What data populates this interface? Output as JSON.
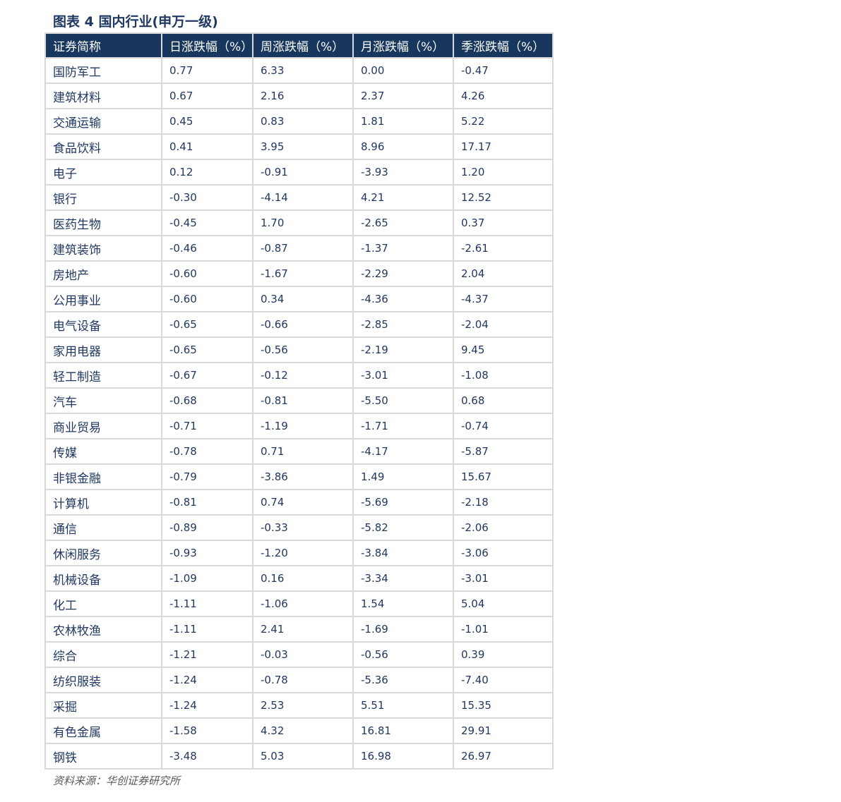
{
  "header": {
    "title": "图表 4 国内行业(申万一级)"
  },
  "table": {
    "columns": [
      "证券简称",
      "日涨跌幅（%）",
      "周涨跌幅（%）",
      "月涨跌幅（%）",
      "季涨跌幅（%）"
    ],
    "rows": [
      [
        "国防军工",
        "0.77",
        "6.33",
        "0.00",
        "-0.47"
      ],
      [
        "建筑材料",
        "0.67",
        "2.16",
        "2.37",
        "4.26"
      ],
      [
        "交通运输",
        "0.45",
        "0.83",
        "1.81",
        "5.22"
      ],
      [
        "食品饮料",
        "0.41",
        "3.95",
        "8.96",
        "17.17"
      ],
      [
        "电子",
        "0.12",
        "-0.91",
        "-3.93",
        "1.20"
      ],
      [
        "银行",
        "-0.30",
        "-4.14",
        "4.21",
        "12.52"
      ],
      [
        "医药生物",
        "-0.45",
        "1.70",
        "-2.65",
        "0.37"
      ],
      [
        "建筑装饰",
        "-0.46",
        "-0.87",
        "-1.37",
        "-2.61"
      ],
      [
        "房地产",
        "-0.60",
        "-1.67",
        "-2.29",
        "2.04"
      ],
      [
        "公用事业",
        "-0.60",
        "0.34",
        "-4.36",
        "-4.37"
      ],
      [
        "电气设备",
        "-0.65",
        "-0.66",
        "-2.85",
        "-2.04"
      ],
      [
        "家用电器",
        "-0.65",
        "-0.56",
        "-2.19",
        "9.45"
      ],
      [
        "轻工制造",
        "-0.67",
        "-0.12",
        "-3.01",
        "-1.08"
      ],
      [
        "汽车",
        "-0.68",
        "-0.81",
        "-5.50",
        "0.68"
      ],
      [
        "商业贸易",
        "-0.71",
        "-1.19",
        "-1.71",
        "-0.74"
      ],
      [
        "传媒",
        "-0.78",
        "0.71",
        "-4.17",
        "-5.87"
      ],
      [
        "非银金融",
        "-0.79",
        "-3.86",
        "1.49",
        "15.67"
      ],
      [
        "计算机",
        "-0.81",
        "0.74",
        "-5.69",
        "-2.18"
      ],
      [
        "通信",
        "-0.89",
        "-0.33",
        "-5.82",
        "-2.06"
      ],
      [
        "休闲服务",
        "-0.93",
        "-1.20",
        "-3.84",
        "-3.06"
      ],
      [
        "机械设备",
        "-1.09",
        "0.16",
        "-3.34",
        "-3.01"
      ],
      [
        "化工",
        "-1.11",
        "-1.06",
        "1.54",
        "5.04"
      ],
      [
        "农林牧渔",
        "-1.11",
        "2.41",
        "-1.69",
        "-1.01"
      ],
      [
        "综合",
        "-1.21",
        "-0.03",
        "-0.56",
        "0.39"
      ],
      [
        "纺织服装",
        "-1.24",
        "-0.78",
        "-5.36",
        "-7.40"
      ],
      [
        "采掘",
        "-1.24",
        "2.53",
        "5.51",
        "15.35"
      ],
      [
        "有色金属",
        "-1.58",
        "4.32",
        "16.81",
        "29.91"
      ],
      [
        "钢铁",
        "-3.48",
        "5.03",
        "16.98",
        "26.97"
      ]
    ]
  },
  "footer": {
    "source": "资料来源：华创证券研究所"
  }
}
